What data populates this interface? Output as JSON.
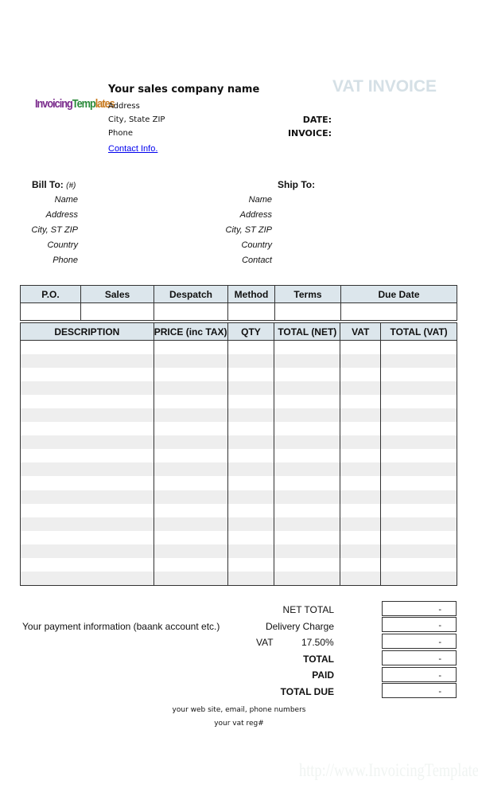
{
  "logo": {
    "text": [
      "Invoicing",
      "Temp",
      "lates"
    ]
  },
  "company": {
    "name": "Your sales company name",
    "address": "Address",
    "city": "City, State ZIP",
    "phone": "Phone",
    "contact_link": "Contact Info."
  },
  "doc_title": "VAT INVOICE",
  "meta": {
    "date_label": "DATE:",
    "invoice_label": "INVOICE:"
  },
  "bill_to": {
    "title": "Bill To:",
    "hash": "(#)",
    "fields": [
      "Name",
      "Address",
      "City, ST ZIP",
      "Country",
      "Phone"
    ]
  },
  "ship_to": {
    "title": "Ship To:",
    "fields": [
      "Name",
      "Address",
      "City, ST ZIP",
      "Country",
      "Contact"
    ]
  },
  "order_table": {
    "headers": [
      "P.O.",
      "Sales",
      "Despatch",
      "Method",
      "Terms",
      "Due Date"
    ]
  },
  "items_table": {
    "headers": [
      "DESCRIPTION",
      "PRICE (inc TAX)",
      "QTY",
      "TOTAL (NET)",
      "VAT",
      "TOTAL (VAT)"
    ]
  },
  "totals": {
    "net_total": {
      "label": "NET TOTAL",
      "value": "-"
    },
    "delivery": {
      "label": "Delivery Charge",
      "value": "-"
    },
    "vat": {
      "label": "VAT",
      "rate": "17.50%",
      "value": "-"
    },
    "total": {
      "label": "TOTAL",
      "value": "-"
    },
    "paid": {
      "label": "PAID",
      "value": "-"
    },
    "total_due": {
      "label": "TOTAL DUE",
      "value": "-"
    }
  },
  "payment_info": "Your payment information (baank account etc.)",
  "footer": {
    "line1": "your web site, email, phone numbers",
    "line2": "your vat reg#"
  },
  "watermark": "http://www.InvoicingTemplate.com",
  "colors": {
    "header_bg": "#dce6ec",
    "stripe": "#eeeeee",
    "title": "#d5e0e6",
    "link": "#0000ee"
  }
}
